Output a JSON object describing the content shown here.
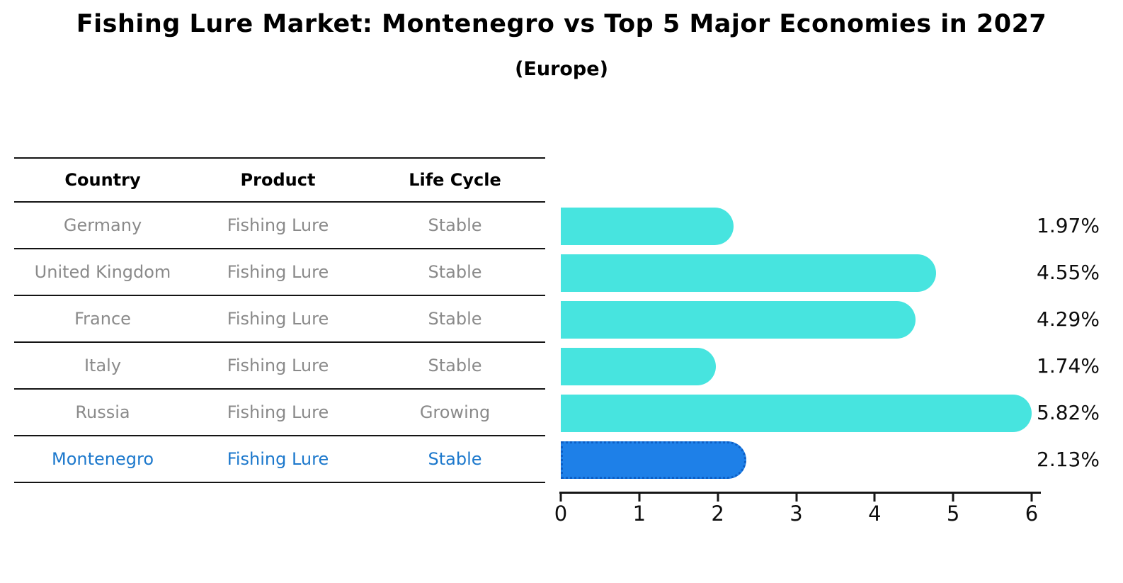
{
  "title": "Fishing Lure Market: Montenegro vs Top 5 Major Economies in 2027",
  "subtitle": "(Europe)",
  "table": {
    "headers": [
      "Country",
      "Product",
      "Life Cycle"
    ],
    "rows": [
      {
        "country": "Germany",
        "product": "Fishing Lure",
        "life_cycle": "Stable",
        "highlight": false
      },
      {
        "country": "United Kingdom",
        "product": "Fishing Lure",
        "life_cycle": "Stable",
        "highlight": false
      },
      {
        "country": "France",
        "product": "Fishing Lure",
        "life_cycle": "Stable",
        "highlight": false
      },
      {
        "country": "Italy",
        "product": "Fishing Lure",
        "life_cycle": "Stable",
        "highlight": false
      },
      {
        "country": "Russia",
        "product": "Fishing Lure",
        "life_cycle": "Growing",
        "highlight": false
      },
      {
        "country": "Montenegro",
        "product": "Fishing Lure",
        "life_cycle": "Stable",
        "highlight": true
      }
    ]
  },
  "chart_data": {
    "type": "bar",
    "orientation": "horizontal",
    "title": "Fishing Lure Market: Montenegro vs Top 5 Major Economies in 2027",
    "subtitle": "(Europe)",
    "categories": [
      "Germany",
      "United Kingdom",
      "France",
      "Italy",
      "Russia",
      "Montenegro"
    ],
    "values": [
      1.97,
      4.55,
      4.29,
      1.74,
      5.82,
      2.13
    ],
    "value_labels": [
      "1.97%",
      "4.55%",
      "4.29%",
      "1.74%",
      "5.82%",
      "2.13%"
    ],
    "highlight_index": 5,
    "xlabel": "",
    "ylabel": "",
    "xlim": [
      0,
      6
    ],
    "x_ticks": [
      "0",
      "1",
      "2",
      "3",
      "4",
      "5",
      "6"
    ],
    "grid": false,
    "legend": false,
    "colors": {
      "bar_default": "#47e4df",
      "bar_highlight": "#1e80e8",
      "bar_highlight_border": "#0d5fc6",
      "highlight_text": "#1c78cc",
      "row_text": "#8a8a8a",
      "axis_text": "#0d0d0d",
      "line_color": "#161616"
    }
  }
}
